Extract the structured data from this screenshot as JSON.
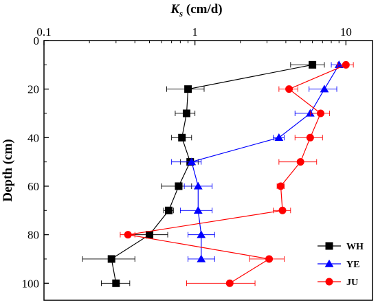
{
  "chart_data": {
    "type": "scatter",
    "title": "",
    "xlabel_main": "K",
    "xlabel_sub": "s",
    "xlabel_unit": " (cm/d)",
    "ylabel": "Depth (cm)",
    "xscale": "log",
    "xlim": [
      0.1,
      15
    ],
    "ylim": [
      0,
      107
    ],
    "x_axis_position": "top",
    "y_inverted": true,
    "grid": false,
    "legend_position": "bottom-right",
    "x_ticks": [
      {
        "value": 0.1,
        "label": "0.1"
      },
      {
        "value": 1,
        "label": "1"
      },
      {
        "value": 10,
        "label": "10"
      }
    ],
    "y_ticks": [
      {
        "value": 0,
        "label": "0"
      },
      {
        "value": 20,
        "label": "20"
      },
      {
        "value": 40,
        "label": "40"
      },
      {
        "value": 60,
        "label": "60"
      },
      {
        "value": 80,
        "label": "80"
      },
      {
        "value": 100,
        "label": "100"
      }
    ],
    "series": [
      {
        "name": "WH",
        "color": "#000000",
        "marker": "square",
        "points": [
          {
            "y": 10,
            "x": 6.0,
            "xmin": 4.3,
            "xmax": 7.2
          },
          {
            "y": 20,
            "x": 0.9,
            "xmin": 0.65,
            "xmax": 1.15
          },
          {
            "y": 30,
            "x": 0.88,
            "xmin": 0.74,
            "xmax": 1.0
          },
          {
            "y": 40,
            "x": 0.82,
            "xmin": 0.7,
            "xmax": 0.95
          },
          {
            "y": 50,
            "x": 0.93,
            "xmin": 0.8,
            "xmax": 1.05
          },
          {
            "y": 60,
            "x": 0.78,
            "xmin": 0.6,
            "xmax": 0.95
          },
          {
            "y": 70,
            "x": 0.67,
            "xmin": 0.62,
            "xmax": 0.72
          },
          {
            "y": 80,
            "x": 0.5,
            "xmin": 0.35,
            "xmax": 0.66
          },
          {
            "y": 90,
            "x": 0.28,
            "xmin": 0.18,
            "xmax": 0.4
          },
          {
            "y": 100,
            "x": 0.3,
            "xmin": 0.24,
            "xmax": 0.37
          }
        ]
      },
      {
        "name": "YE",
        "color": "#0000ff",
        "marker": "triangle",
        "points": [
          {
            "y": 10,
            "x": 9.0,
            "xmin": 8.0,
            "xmax": 10.2
          },
          {
            "y": 20,
            "x": 7.2,
            "xmin": 5.7,
            "xmax": 8.7
          },
          {
            "y": 30,
            "x": 5.8,
            "xmin": 4.6,
            "xmax": 7.0
          },
          {
            "y": 40,
            "x": 3.6,
            "xmin": 3.3,
            "xmax": 3.9
          },
          {
            "y": 50,
            "x": 0.95,
            "xmin": 0.7,
            "xmax": 1.1
          },
          {
            "y": 60,
            "x": 1.05,
            "xmin": 0.85,
            "xmax": 1.3
          },
          {
            "y": 70,
            "x": 1.05,
            "xmin": 0.8,
            "xmax": 1.3
          },
          {
            "y": 80,
            "x": 1.1,
            "xmin": 0.9,
            "xmax": 1.35
          },
          {
            "y": 90,
            "x": 1.1,
            "xmin": 0.9,
            "xmax": 1.35
          }
        ]
      },
      {
        "name": "JU",
        "color": "#ff0000",
        "marker": "circle",
        "points": [
          {
            "y": 10,
            "x": 10.0,
            "xmin": 8.8,
            "xmax": 11.2
          },
          {
            "y": 20,
            "x": 4.2,
            "xmin": 3.6,
            "xmax": 4.8
          },
          {
            "y": 30,
            "x": 6.8,
            "xmin": 5.8,
            "xmax": 7.8
          },
          {
            "y": 40,
            "x": 5.8,
            "xmin": 4.6,
            "xmax": 7.0
          },
          {
            "y": 50,
            "x": 5.0,
            "xmin": 3.6,
            "xmax": 6.4
          },
          {
            "y": 60,
            "x": 3.7,
            "xmin": 3.5,
            "xmax": 3.9
          },
          {
            "y": 70,
            "x": 3.8,
            "xmin": 3.3,
            "xmax": 4.3
          },
          {
            "y": 80,
            "x": 0.36,
            "xmin": 0.32,
            "xmax": 0.4
          },
          {
            "y": 90,
            "x": 3.1,
            "xmin": 2.3,
            "xmax": 3.9
          },
          {
            "y": 100,
            "x": 1.7,
            "xmin": 0.88,
            "xmax": 2.5
          }
        ]
      }
    ]
  }
}
